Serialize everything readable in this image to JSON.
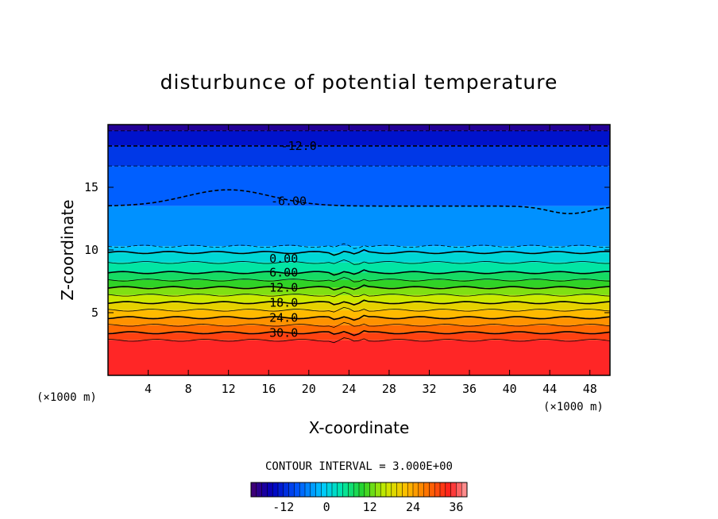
{
  "chart_data": {
    "type": "contour",
    "title": "disturbunce of potential temperature",
    "xlabel": "X-coordinate",
    "ylabel": "Z-coordinate",
    "x_unit_left": "(×1000 m)",
    "x_unit_right": "(×1000 m)",
    "xlim": [
      0,
      50
    ],
    "ylim": [
      0,
      20
    ],
    "x_ticks": [
      "4",
      "8",
      "12",
      "16",
      "20",
      "24",
      "28",
      "32",
      "36",
      "40",
      "44",
      "48"
    ],
    "y_ticks": [
      "5",
      "10",
      "15"
    ],
    "contour_interval_text": "CONTOUR INTERVAL = 3.000E+00",
    "contour_levels_labeled": [
      {
        "text": "-12.0",
        "x": 19,
        "z": 18.3
      },
      {
        "text": "-6.00",
        "x": 18,
        "z": 13.9
      },
      {
        "text": "0.00",
        "x": 17.5,
        "z": 9.3
      },
      {
        "text": "6.00",
        "x": 17.5,
        "z": 8.2
      },
      {
        "text": "12.0",
        "x": 17.5,
        "z": 7.0
      },
      {
        "text": "18.0",
        "x": 17.5,
        "z": 5.8
      },
      {
        "text": "24.0",
        "x": 17.5,
        "z": 4.6
      },
      {
        "text": "30.0",
        "x": 17.5,
        "z": 3.4
      }
    ],
    "level_z_heights": [
      {
        "level": -15,
        "z": 19.5
      },
      {
        "level": -12,
        "z": 18.3
      },
      {
        "level": -9,
        "z": 16.7
      },
      {
        "level": -6,
        "z": 13.5
      },
      {
        "level": -3,
        "z": 10.3
      },
      {
        "level": 0,
        "z": 9.8
      },
      {
        "level": 3,
        "z": 9.0
      },
      {
        "level": 6,
        "z": 8.2
      },
      {
        "level": 9,
        "z": 7.6
      },
      {
        "level": 12,
        "z": 7.0
      },
      {
        "level": 15,
        "z": 6.4
      },
      {
        "level": 18,
        "z": 5.8
      },
      {
        "level": 21,
        "z": 5.2
      },
      {
        "level": 24,
        "z": 4.6
      },
      {
        "level": 27,
        "z": 4.0
      },
      {
        "level": 30,
        "z": 3.4
      },
      {
        "level": 33,
        "z": 2.8
      }
    ],
    "colorbar": {
      "range": [
        -21,
        39
      ],
      "tick_labels": [
        "-12",
        "0",
        "12",
        "24",
        "36"
      ],
      "tick_values": [
        -12,
        0,
        12,
        24,
        36
      ]
    }
  }
}
